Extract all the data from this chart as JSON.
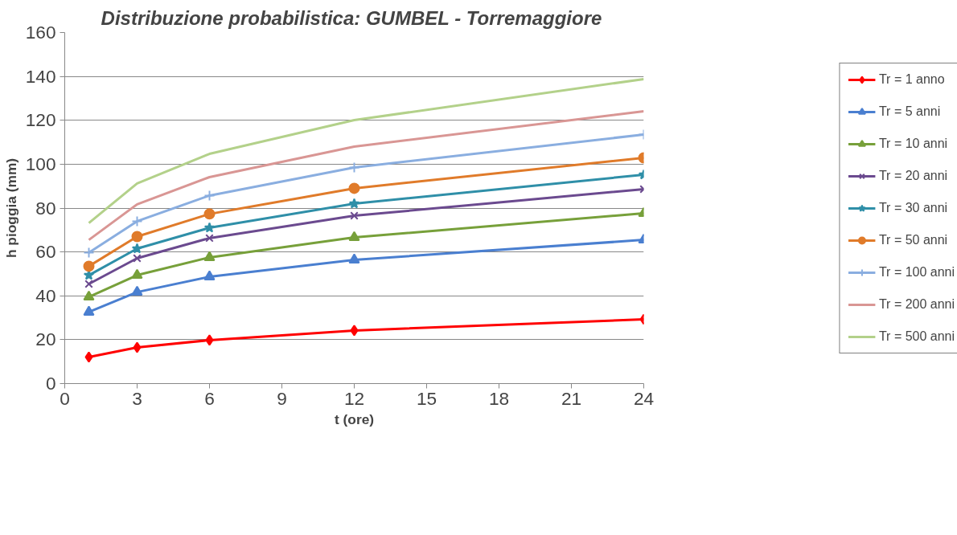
{
  "chart_data": {
    "type": "line",
    "title": "Distribuzione probabilistica:  GUMBEL - Torremaggiore",
    "xlabel": "t (ore)",
    "ylabel": "h pioggia (mm)",
    "x": [
      1,
      3,
      6,
      12,
      24
    ],
    "xlim": [
      0,
      24
    ],
    "xticks": [
      0,
      3,
      6,
      9,
      12,
      15,
      18,
      21,
      24
    ],
    "ylim": [
      0,
      160
    ],
    "yticks": [
      0,
      20,
      40,
      60,
      80,
      100,
      120,
      140,
      160
    ],
    "grid": "y",
    "legend": "right",
    "series": [
      {
        "name": "Tr = 1 anno",
        "color": "#ff0000",
        "marker": "diamond",
        "values": [
          12.1,
          16.5,
          19.8,
          24.2,
          29.3
        ]
      },
      {
        "name": "Tr = 5 anni",
        "color": "#4a7fd0",
        "marker": "triangle",
        "values": [
          32.6,
          41.7,
          48.7,
          56.4,
          65.5
        ]
      },
      {
        "name": "Tr = 10 anni",
        "color": "#77a03a",
        "marker": "triangle",
        "values": [
          39.5,
          49.4,
          57.5,
          66.6,
          77.6
        ]
      },
      {
        "name": "Tr = 20 anni",
        "color": "#6b4a8f",
        "marker": "x",
        "values": [
          45.4,
          57.1,
          66.3,
          76.5,
          88.6
        ]
      },
      {
        "name": "Tr = 30 anni",
        "color": "#2f8fa8",
        "marker": "star",
        "values": [
          49.4,
          61.5,
          71.0,
          82.0,
          95.2
        ]
      },
      {
        "name": "Tr = 50 anni",
        "color": "#e07b2a",
        "marker": "circle",
        "values": [
          53.5,
          67.0,
          77.3,
          89.0,
          102.9
        ]
      },
      {
        "name": "Tr = 100 anni",
        "color": "#8aaee0",
        "marker": "cross",
        "values": [
          59.7,
          74.0,
          85.7,
          98.5,
          113.5
        ]
      },
      {
        "name": "Tr = 200 anni",
        "color": "#d99694",
        "marker": "none",
        "values": [
          65.5,
          81.7,
          94.1,
          108.0,
          124.1
        ]
      },
      {
        "name": "Tr = 500 anni",
        "color": "#b3d18a",
        "marker": "none",
        "values": [
          73.2,
          91.2,
          104.7,
          120.1,
          138.8
        ]
      }
    ]
  }
}
